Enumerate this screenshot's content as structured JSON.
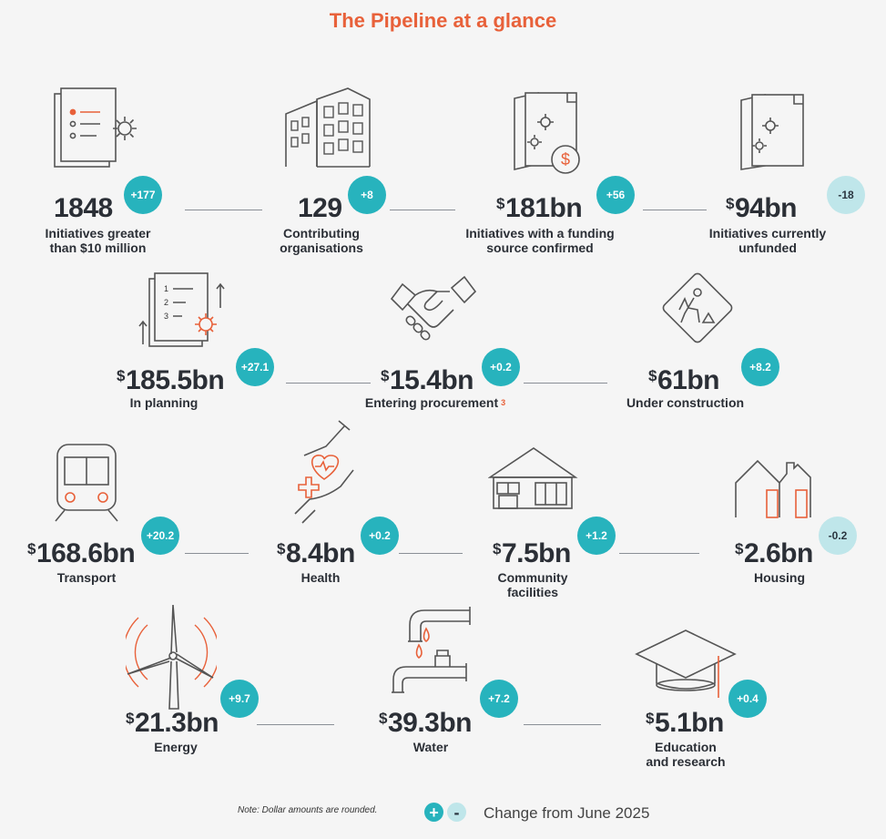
{
  "title": "The Pipeline at a glance",
  "stats": [
    {
      "id": "initiatives",
      "prefix": "",
      "value": "1848",
      "label": [
        "Initiatives greater",
        "than $10 million"
      ],
      "change": "+177",
      "direction": "up",
      "icon": "document-gear-icon"
    },
    {
      "id": "organisations",
      "prefix": "",
      "value": "129",
      "label": [
        "Contributing",
        "organisations"
      ],
      "change": "+8",
      "direction": "up",
      "icon": "buildings-icon"
    },
    {
      "id": "funded",
      "prefix": "$",
      "value": "181bn",
      "label": [
        "Initiatives with a funding",
        "source confirmed"
      ],
      "change": "+56",
      "direction": "up",
      "icon": "documents-dollar-icon"
    },
    {
      "id": "unfunded",
      "prefix": "$",
      "value": "94bn",
      "label": [
        "Initiatives currently",
        "unfunded"
      ],
      "change": "-18",
      "direction": "down",
      "icon": "documents-gears-icon"
    },
    {
      "id": "planning",
      "prefix": "$",
      "value": "185.5bn",
      "label": [
        "In planning"
      ],
      "change": "+27.1",
      "direction": "up",
      "icon": "planning-list-icon"
    },
    {
      "id": "procurement",
      "prefix": "$",
      "value": "15.4bn",
      "label": [
        "Entering procurement"
      ],
      "footnote": "3",
      "change": "+0.2",
      "direction": "up",
      "icon": "handshake-icon"
    },
    {
      "id": "construction",
      "prefix": "$",
      "value": "61bn",
      "label": [
        "Under construction"
      ],
      "change": "+8.2",
      "direction": "up",
      "icon": "construction-sign-icon"
    },
    {
      "id": "transport",
      "prefix": "$",
      "value": "168.6bn",
      "label": [
        "Transport"
      ],
      "change": "+20.2",
      "direction": "up",
      "icon": "train-icon"
    },
    {
      "id": "health",
      "prefix": "$",
      "value": "8.4bn",
      "label": [
        "Health"
      ],
      "change": "+0.2",
      "direction": "up",
      "icon": "health-hands-icon"
    },
    {
      "id": "community",
      "prefix": "$",
      "value": "7.5bn",
      "label": [
        "Community",
        "facilities"
      ],
      "change": "+1.2",
      "direction": "up",
      "icon": "community-building-icon"
    },
    {
      "id": "housing",
      "prefix": "$",
      "value": "2.6bn",
      "label": [
        "Housing"
      ],
      "change": "-0.2",
      "direction": "down",
      "icon": "houses-icon"
    },
    {
      "id": "energy",
      "prefix": "$",
      "value": "21.3bn",
      "label": [
        "Energy"
      ],
      "change": "+9.7",
      "direction": "up",
      "icon": "wind-turbine-icon"
    },
    {
      "id": "water",
      "prefix": "$",
      "value": "39.3bn",
      "label": [
        "Water"
      ],
      "change": "+7.2",
      "direction": "up",
      "icon": "water-tap-icon"
    },
    {
      "id": "education",
      "prefix": "$",
      "value": "5.1bn",
      "label": [
        "Education",
        "and research"
      ],
      "change": "+0.4",
      "direction": "up",
      "icon": "graduation-cap-icon"
    }
  ],
  "note": "Note: Dollar amounts are rounded.",
  "legend": {
    "plus": "+",
    "minus": "-",
    "text": "Change from June 2025"
  }
}
